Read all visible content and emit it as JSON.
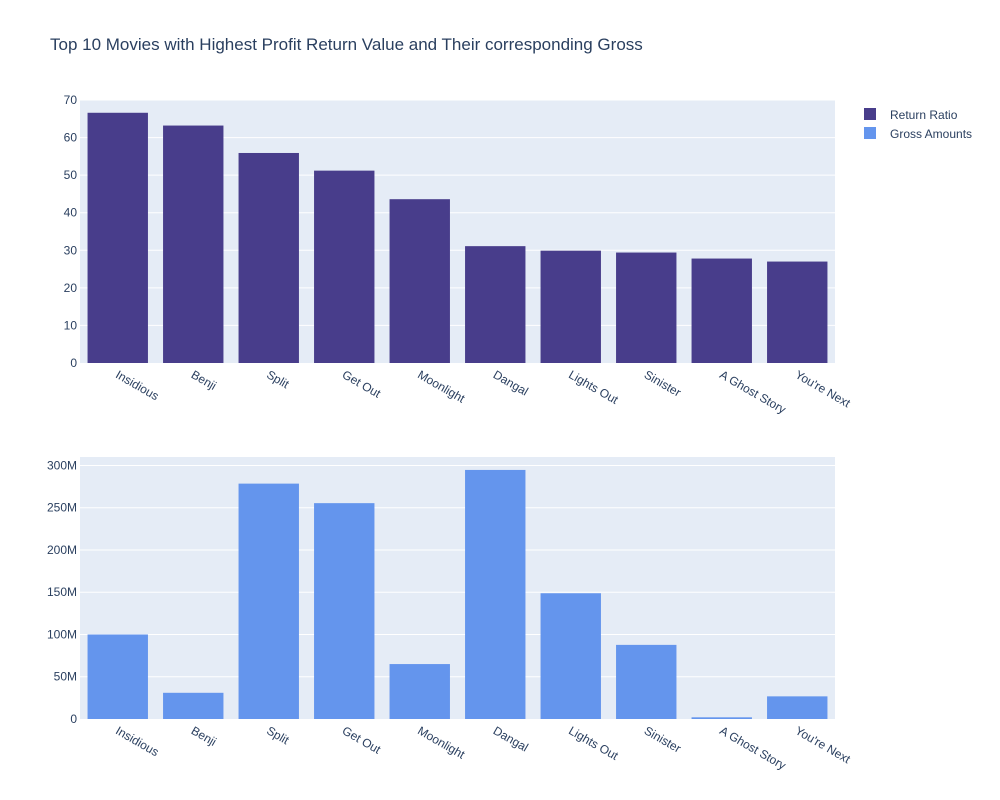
{
  "title": "Top 10 Movies with Highest Profit Return Value and Their corresponding Gross",
  "legend": [
    {
      "label": "Return Ratio",
      "color": "#483d8b"
    },
    {
      "label": "Gross Amounts",
      "color": "#6495ed"
    }
  ],
  "chart_data": [
    {
      "type": "bar",
      "name": "Return Ratio",
      "color": "#483d8b",
      "categories": [
        "Insidious",
        "Benji",
        "Split",
        "Get Out",
        "Moonlight",
        "Dangal",
        "Lights Out",
        "Sinister",
        "A Ghost Story",
        "You're Next"
      ],
      "values": [
        66.6,
        63.2,
        55.9,
        51.2,
        43.6,
        31.1,
        29.9,
        29.4,
        27.8,
        27.0
      ],
      "ylim": [
        0,
        70
      ],
      "yticks": [
        0,
        10,
        20,
        30,
        40,
        50,
        60,
        70
      ],
      "ytick_labels": [
        "0",
        "10",
        "20",
        "30",
        "40",
        "50",
        "60",
        "70"
      ],
      "grid": true
    },
    {
      "type": "bar",
      "name": "Gross Amounts",
      "color": "#6495ed",
      "categories": [
        "Insidious",
        "Benji",
        "Split",
        "Get Out",
        "Moonlight",
        "Dangal",
        "Lights Out",
        "Sinister",
        "A Ghost Story",
        "You're Next"
      ],
      "values": [
        100000000,
        31000000,
        278500000,
        255400000,
        65000000,
        294700000,
        148800000,
        87700000,
        2000000,
        26800000
      ],
      "ylim": [
        0,
        310000000
      ],
      "yticks": [
        0,
        50000000,
        100000000,
        150000000,
        200000000,
        250000000,
        300000000
      ],
      "ytick_labels": [
        "0",
        "50M",
        "100M",
        "150M",
        "200M",
        "250M",
        "300M"
      ],
      "grid": true
    }
  ]
}
